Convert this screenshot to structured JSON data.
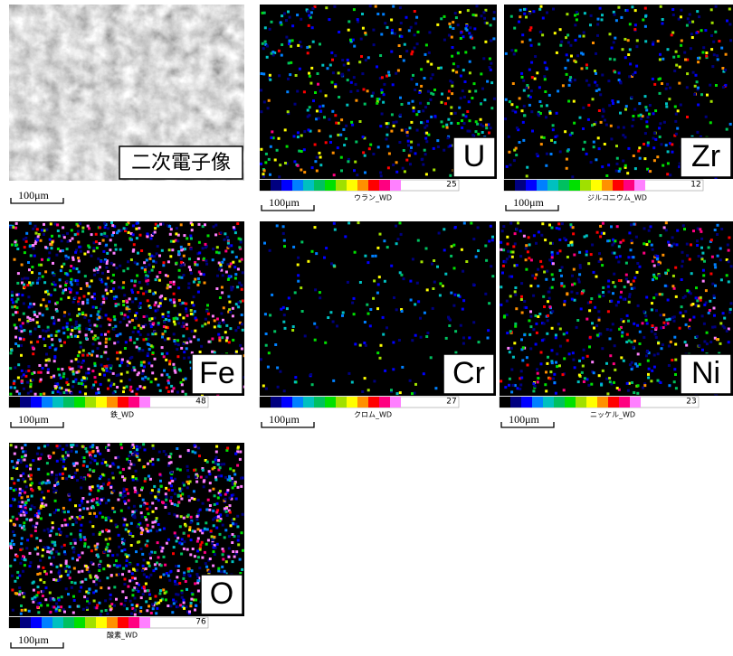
{
  "panels": [
    {
      "label": "二次電子像",
      "scale": "100μm"
    },
    {
      "label": "U",
      "colorbar_max": 25,
      "caption": "ウラン_WD",
      "scale": "100μm"
    },
    {
      "label": "Zr",
      "colorbar_max": 12,
      "caption": "ジルコニウム_WD",
      "scale": "100μm"
    },
    {
      "label": "Fe",
      "colorbar_max": 48,
      "caption": "鉄_WD",
      "scale": "100μm"
    },
    {
      "label": "Cr",
      "colorbar_max": 27,
      "caption": "クロム_WD",
      "scale": "100μm"
    },
    {
      "label": "Ni",
      "colorbar_max": 23,
      "caption": "ニッケル_WD",
      "scale": "100μm"
    },
    {
      "label": "O",
      "colorbar_max": 76,
      "caption": "酸素_WD",
      "scale": "100μm"
    }
  ]
}
